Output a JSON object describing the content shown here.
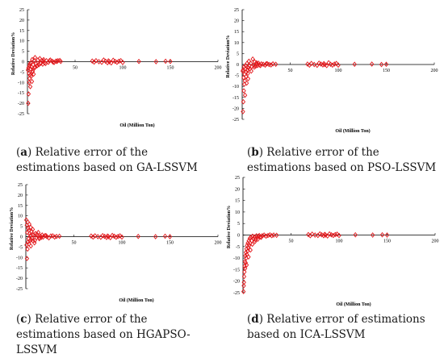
{
  "chart_data": [
    {
      "type": "scatter",
      "panel_letter": "a",
      "caption_rest": " Relative error of the estimations based on GA-LSSVM",
      "xlabel": "Oil (Million Ton)",
      "ylabel": "Relative Deviation%",
      "xlim": [
        0,
        200
      ],
      "ylim": [
        -25,
        25
      ],
      "xticks": [
        50,
        100,
        150,
        200
      ],
      "yticks": [
        -25,
        -20,
        -15,
        -10,
        -5,
        0,
        5,
        10,
        15,
        20,
        25
      ],
      "grid": false,
      "legend": "none",
      "marker_color": "#e3171b",
      "x": [
        0.5,
        0.8,
        1.0,
        1.2,
        1.5,
        1.7,
        2.0,
        2.2,
        2.5,
        2.8,
        3.0,
        3.3,
        3.6,
        4.0,
        4.3,
        4.7,
        5.0,
        5.5,
        6.0,
        6.5,
        7.0,
        7.5,
        8.0,
        9.0,
        10.0,
        11.0,
        12.0,
        13.0,
        14.0,
        15.0,
        16.0,
        17.0,
        18.0,
        20.0,
        22.0,
        24.0,
        26.0,
        28.0,
        30.0,
        32.0,
        35.0,
        5.2,
        7.8,
        10.5,
        13.5,
        16.5,
        19.0,
        23.0,
        27.0,
        31.0,
        34.0,
        68,
        70,
        72,
        75,
        78,
        80,
        82,
        84,
        85,
        86,
        88,
        90,
        92,
        94,
        96,
        98,
        100,
        117,
        135,
        145,
        150
      ],
      "y": [
        -4.0,
        -20.0,
        -3.0,
        -15.5,
        -5.5,
        -10.0,
        -2.0,
        -8.0,
        -1.0,
        -6.5,
        -12.0,
        -3.5,
        -0.5,
        -7.0,
        -2.5,
        -9.5,
        1.0,
        -4.5,
        -1.5,
        -6.0,
        0.5,
        -3.0,
        2.0,
        -1.0,
        -2.0,
        0.8,
        -1.5,
        1.5,
        -0.8,
        0.5,
        -1.2,
        1.0,
        -0.5,
        0.5,
        -0.3,
        0.8,
        0.2,
        -0.4,
        0.3,
        0.5,
        0.1,
        -5.0,
        -2.5,
        -1.8,
        -0.6,
        0.3,
        -0.9,
        0.4,
        -0.2,
        0.1,
        0.6,
        0.3,
        -0.2,
        0.5,
        0.0,
        -0.3,
        0.8,
        0.2,
        -0.5,
        0.4,
        0.0,
        -0.6,
        0.7,
        0.1,
        -0.3,
        0.2,
        0.5,
        -0.4,
        0.1,
        0.0,
        0.2,
        0.1
      ]
    },
    {
      "type": "scatter",
      "panel_letter": "b",
      "caption_rest": "  Relative error of the estimations based on PSO-LSSVM",
      "xlabel": "Oil (Million Ton)",
      "ylabel": "Relative Deviation%",
      "xlim": [
        0,
        200
      ],
      "ylim": [
        -25,
        25
      ],
      "xticks": [
        50,
        100,
        150,
        200
      ],
      "yticks": [
        -25,
        -20,
        -15,
        -10,
        -5,
        0,
        5,
        10,
        15,
        20,
        25
      ],
      "grid": false,
      "legend": "none",
      "marker_color": "#e3171b",
      "x": [
        0.5,
        0.8,
        1.0,
        1.2,
        1.5,
        1.7,
        2.0,
        2.2,
        2.5,
        2.8,
        3.0,
        3.3,
        3.6,
        4.0,
        4.3,
        4.7,
        5.0,
        5.5,
        6.0,
        6.5,
        7.0,
        7.5,
        8.0,
        9.0,
        10.0,
        11.0,
        12.0,
        13.0,
        14.0,
        15.0,
        16.0,
        17.0,
        18.0,
        20.0,
        22.0,
        24.0,
        26.0,
        28.0,
        30.0,
        32.0,
        35.0,
        6.2,
        9.5,
        12.5,
        15.5,
        19.0,
        25.0,
        68,
        70,
        72,
        75,
        78,
        80,
        82,
        84,
        85,
        86,
        88,
        90,
        92,
        94,
        96,
        98,
        100,
        117,
        135,
        145,
        150
      ],
      "y": [
        -3.0,
        -21.5,
        -2.5,
        -17.0,
        -6.0,
        -12.0,
        -1.0,
        -9.0,
        -4.5,
        -7.5,
        -14.0,
        -2.0,
        -0.5,
        -5.5,
        -3.5,
        -8.5,
        0.5,
        -2.5,
        -4.0,
        -1.5,
        1.5,
        -0.5,
        -2.0,
        0.5,
        -1.0,
        2.5,
        -0.3,
        1.2,
        -0.8,
        0.8,
        -0.5,
        0.6,
        -0.2,
        0.3,
        0.1,
        -0.3,
        0.4,
        0.0,
        -0.2,
        0.3,
        0.1,
        -6.5,
        -3.0,
        -1.2,
        0.2,
        -0.5,
        0.3,
        0.2,
        -0.3,
        0.5,
        0.0,
        -0.4,
        0.6,
        0.2,
        -0.2,
        0.4,
        0.0,
        -0.5,
        0.8,
        0.1,
        -0.3,
        0.2,
        0.5,
        -0.3,
        0.1,
        0.2,
        0.0,
        0.1
      ]
    },
    {
      "type": "scatter",
      "panel_letter": "c",
      "caption_rest": " Relative error of the estimations based on HGAPSO-LSSVM",
      "xlabel": "Oil (Million Ton)",
      "ylabel": "Relative Deviation%",
      "xlim": [
        0,
        200
      ],
      "ylim": [
        -25,
        25
      ],
      "xticks": [
        50,
        100,
        150,
        200
      ],
      "yticks": [
        -25,
        -20,
        -15,
        -10,
        -5,
        0,
        5,
        10,
        15,
        20,
        25
      ],
      "grid": false,
      "legend": "none",
      "marker_color": "#e3171b",
      "x": [
        0.5,
        0.7,
        1.0,
        1.2,
        1.5,
        1.8,
        2.0,
        2.3,
        2.5,
        2.8,
        3.0,
        3.3,
        3.6,
        4.0,
        4.3,
        4.7,
        5.0,
        5.5,
        6.0,
        6.5,
        7.0,
        7.5,
        8.0,
        9.0,
        10.0,
        11.0,
        12.0,
        13.0,
        14.0,
        15.0,
        16.0,
        17.0,
        18.0,
        20.0,
        22.0,
        24.0,
        26.0,
        28.0,
        30.0,
        32.0,
        35.0,
        5.2,
        7.2,
        9.5,
        11.5,
        14.5,
        21.0,
        68,
        70,
        72,
        75,
        78,
        80,
        82,
        84,
        85,
        86,
        88,
        90,
        92,
        94,
        96,
        98,
        100,
        117,
        135,
        145,
        150
      ],
      "y": [
        8.0,
        -4.0,
        5.5,
        -10.5,
        2.0,
        -6.0,
        7.0,
        -2.5,
        4.0,
        -1.0,
        3.0,
        -3.5,
        6.0,
        1.5,
        -2.0,
        0.5,
        4.5,
        -1.5,
        2.5,
        -0.8,
        1.0,
        -2.0,
        0.8,
        -3.0,
        1.5,
        -0.5,
        0.5,
        2.0,
        -1.0,
        0.3,
        -0.4,
        0.8,
        -0.2,
        0.5,
        0.0,
        -0.6,
        0.3,
        0.4,
        -0.2,
        0.1,
        0.2,
        -4.5,
        3.5,
        -1.8,
        1.2,
        -0.6,
        0.5,
        0.3,
        -0.2,
        0.4,
        0.0,
        -0.3,
        0.5,
        0.1,
        -0.4,
        0.3,
        0.0,
        -0.5,
        0.6,
        0.2,
        -0.3,
        0.1,
        0.4,
        -0.2,
        0.1,
        0.0,
        0.2,
        0.0
      ]
    },
    {
      "type": "scatter",
      "panel_letter": "d",
      "caption_rest": "  Relative error of estimations based on ICA-LSSVM",
      "xlabel": "Oil (Million Ton)",
      "ylabel": "Relative Deviation%",
      "xlim": [
        0,
        200
      ],
      "ylim": [
        -25,
        25
      ],
      "xticks": [
        50,
        100,
        150,
        200
      ],
      "yticks": [
        -25,
        -20,
        -15,
        -10,
        -5,
        0,
        5,
        10,
        15,
        20,
        25
      ],
      "grid": false,
      "legend": "none",
      "marker_color": "#e3171b",
      "x": [
        0.5,
        0.8,
        1.0,
        1.2,
        1.5,
        1.7,
        2.0,
        2.2,
        2.5,
        2.8,
        3.0,
        3.3,
        3.6,
        4.0,
        4.3,
        4.7,
        5.0,
        5.5,
        6.0,
        6.5,
        7.0,
        7.5,
        8.0,
        9.0,
        10.0,
        11.0,
        12.0,
        13.0,
        14.0,
        15.0,
        16.0,
        17.0,
        18.0,
        20.0,
        22.0,
        24.0,
        26.0,
        28.0,
        30.0,
        32.0,
        35.0,
        3.8,
        5.8,
        7.8,
        9.8,
        12.5,
        15.5,
        19.0,
        68,
        70,
        72,
        75,
        78,
        80,
        82,
        84,
        85,
        86,
        88,
        90,
        92,
        94,
        96,
        98,
        100,
        117,
        135,
        145,
        150
      ],
      "y": [
        -24.5,
        -22.0,
        -20.5,
        -18.0,
        -16.0,
        -13.5,
        -11.5,
        -14.5,
        -9.0,
        -12.0,
        -7.5,
        -10.0,
        -6.0,
        -8.5,
        -4.5,
        -7.0,
        -3.5,
        -5.5,
        -2.5,
        -4.5,
        -1.5,
        -3.5,
        -1.0,
        -2.5,
        -0.5,
        -1.5,
        -0.8,
        -2.0,
        -0.3,
        -1.0,
        -0.5,
        -0.2,
        -0.8,
        -0.3,
        0.0,
        -0.5,
        -0.2,
        0.1,
        -0.3,
        0.0,
        -0.1,
        -13.0,
        -9.5,
        -6.5,
        -4.0,
        -2.8,
        -1.8,
        -1.0,
        0.2,
        -0.3,
        0.4,
        0.0,
        -0.2,
        0.5,
        0.1,
        -0.3,
        0.3,
        0.0,
        -0.4,
        0.5,
        0.1,
        -0.2,
        0.2,
        0.4,
        -0.2,
        0.1,
        0.0,
        0.1,
        0.0
      ]
    }
  ]
}
